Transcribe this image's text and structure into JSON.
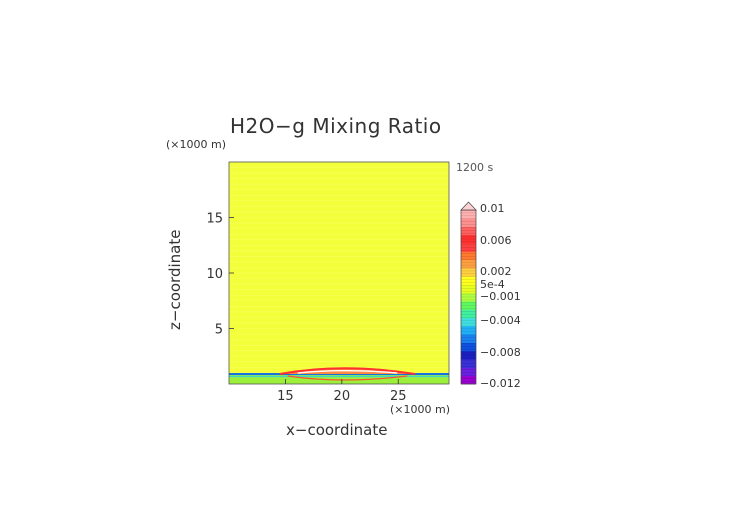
{
  "chart_data": {
    "type": "heatmap",
    "title": "H2O−g Mixing Ratio",
    "time_label": "1200 s",
    "xlabel": "x−coordinate",
    "ylabel": "z−coordinate",
    "x_unit": "(×1000 m)",
    "y_unit": "(×1000 m)",
    "xlim": [
      10,
      29.5
    ],
    "ylim": [
      0,
      20
    ],
    "x_ticks": [
      "15",
      "20",
      "25"
    ],
    "x_tick_values": [
      15,
      20,
      25
    ],
    "y_ticks": [
      "5",
      "10",
      "15"
    ],
    "y_tick_values": [
      5,
      10,
      15
    ],
    "field_value": 0.0,
    "band": {
      "z_top": 0.9,
      "z_mid": 0.75
    },
    "bump": {
      "x_left": 14.5,
      "x_right": 26.5,
      "x_center": 20,
      "z_peak": 1.4
    },
    "colorbar": {
      "labels": [
        "0.01",
        "0.006",
        "0.002",
        "5e-4",
        "−0.001",
        "−0.004",
        "−0.008",
        "−0.012"
      ],
      "label_values": [
        0.01,
        0.006,
        0.002,
        0.0005,
        -0.001,
        -0.004,
        -0.008,
        -0.012
      ],
      "range": [
        -0.012,
        0.011
      ],
      "colors": [
        "#9a00d0",
        "#6a20e0",
        "#3a30d8",
        "#1c20c0",
        "#1050e0",
        "#1a80f0",
        "#20b0f8",
        "#40e0e0",
        "#40f0a0",
        "#60f860",
        "#b0ff40",
        "#e8ff20",
        "#ffff20",
        "#ffd040",
        "#ffa040",
        "#ff7a30",
        "#ff4040",
        "#ff3030",
        "#ff6060",
        "#ff9090",
        "#ffb0b0"
      ]
    }
  }
}
